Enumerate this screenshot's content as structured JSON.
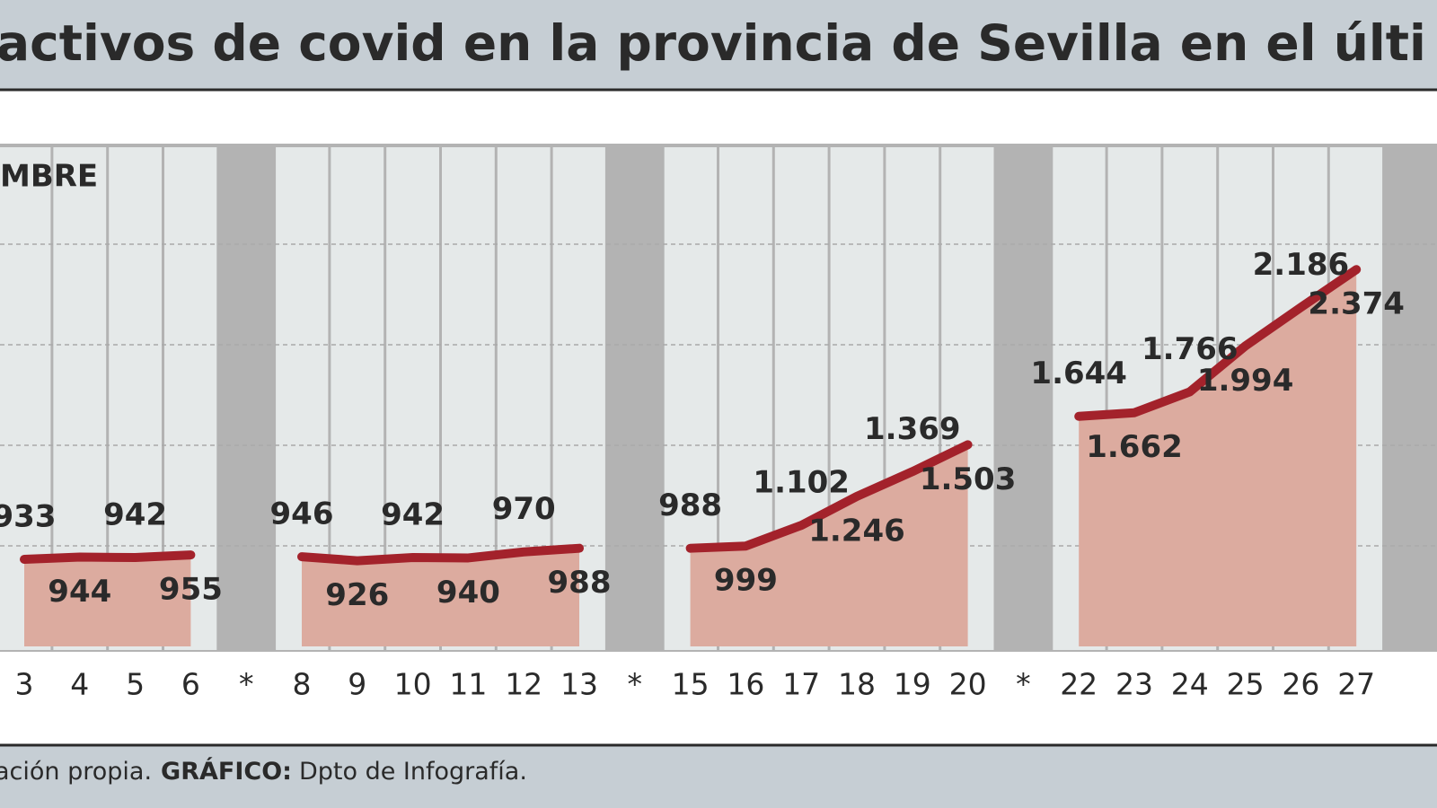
{
  "chart_data": {
    "type": "line",
    "title": "activos de covid en la provincia de Sevilla en el últi",
    "period_label": "MBRE",
    "categories": [
      "3",
      "4",
      "5",
      "6",
      "*",
      "8",
      "9",
      "10",
      "11",
      "12",
      "13",
      "*",
      "15",
      "16",
      "17",
      "18",
      "19",
      "20",
      "*",
      "22",
      "23",
      "24",
      "25",
      "26",
      "27"
    ],
    "series": [
      {
        "color": "#a3222b",
        "values": [
          933,
          944,
          942,
          955,
          null,
          946,
          926,
          942,
          940,
          970,
          988,
          null,
          988,
          999,
          1102,
          1246,
          1369,
          1503,
          null,
          1644,
          1662,
          1766,
          1994,
          2186,
          2374
        ],
        "value_labels": [
          "933",
          "944",
          "942",
          "955",
          null,
          "946",
          "926",
          "942",
          "940",
          "970",
          "988",
          null,
          "988",
          "999",
          "1.102",
          "1.246",
          "1.369",
          "1.503",
          null,
          "1.644",
          "1.662",
          "1.766",
          "1.994",
          "2.186",
          "2.374"
        ]
      }
    ],
    "area_color": "#dcab9f",
    "ylim": [
      500,
      3000
    ],
    "yticks": [
      1000,
      1500,
      2000,
      2500
    ],
    "grid": true,
    "source": "ación propia.",
    "credit_label": "GRÁFICO:",
    "credit": "Dpto de Infografía."
  }
}
